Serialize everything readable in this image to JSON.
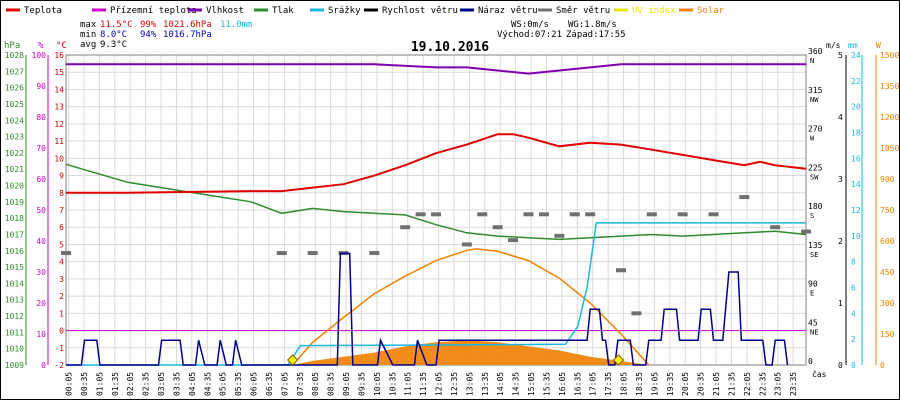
{
  "chart_data": {
    "type": "line",
    "title": "19.10.2016",
    "legend": [
      {
        "label": "Teplota",
        "color": "#e00000"
      },
      {
        "label": "Přízemní teplota",
        "color": "#cc00cc"
      },
      {
        "label": "Vlhkost",
        "color": "#8000b0"
      },
      {
        "label": "Tlak",
        "color": "#2e8b2e"
      },
      {
        "label": "Srážky",
        "color": "#18b8e0"
      },
      {
        "label": "Rychlost větru",
        "color": "#000000"
      },
      {
        "label": "Náraz větru",
        "color": "#000088"
      },
      {
        "label": "Směr větru",
        "color": "#707070"
      },
      {
        "label": "UV index",
        "color": "#e8e800"
      },
      {
        "label": "Solar",
        "color": "#f08000"
      }
    ],
    "stats": {
      "max_label": "max",
      "max_temp": "11.5°C",
      "max_hum": "99%",
      "max_press": "1021.6hPa",
      "max_rain": "11.0mm",
      "min_label": "min",
      "min_temp": "8.0°C",
      "min_hum": "94%",
      "min_press": "1016.7hPa",
      "avg_label": "avg",
      "avg_temp": "9.3°C",
      "ws": "WS:0m/s",
      "wg": "WG:1.8m/s",
      "sunrise": "Východ:07:21",
      "sunset": "Západ:17:55"
    },
    "axes": {
      "hpa": {
        "unit": "hPa",
        "color": "#2e8b2e",
        "range": [
          1009,
          1028
        ],
        "ticks": [
          1009,
          1010,
          1011,
          1012,
          1013,
          1014,
          1015,
          1016,
          1017,
          1018,
          1019,
          1020,
          1021,
          1022,
          1023,
          1024,
          1025,
          1026,
          1027,
          1028
        ]
      },
      "pct": {
        "unit": "%",
        "color": "#cc00cc",
        "range": [
          0,
          100
        ],
        "ticks": [
          0,
          10,
          20,
          30,
          40,
          50,
          60,
          70,
          80,
          90,
          100
        ]
      },
      "celsius": {
        "unit": "°C",
        "color": "#cc0000",
        "range": [
          -2,
          16
        ],
        "ticks": [
          -2,
          -1,
          0,
          1,
          2,
          3,
          4,
          5,
          6,
          7,
          8,
          9,
          10,
          11,
          12,
          13,
          14,
          15,
          16
        ]
      },
      "dir": {
        "range": [
          0,
          360
        ],
        "ticks": [
          "0",
          "45",
          "90",
          "135",
          "180",
          "225",
          "270",
          "315",
          "360"
        ],
        "names": [
          "",
          "NE",
          "E",
          "SE",
          "S",
          "SW",
          "W",
          "NW",
          "N"
        ]
      },
      "ms": {
        "unit": "m/s",
        "color": "#000000",
        "range": [
          0,
          5
        ],
        "ticks": [
          0,
          1,
          2,
          3,
          4,
          5
        ]
      },
      "mm": {
        "unit": "mm",
        "color": "#18b8e0",
        "range": [
          0,
          24
        ],
        "ticks": [
          0,
          2,
          4,
          6,
          8,
          10,
          12,
          14,
          16,
          18,
          20,
          22,
          24
        ]
      },
      "w": {
        "unit": "W",
        "color": "#f08000",
        "range": [
          0,
          1500
        ],
        "ticks": [
          0,
          150,
          300,
          450,
          600,
          750,
          900,
          1050,
          1200,
          1350,
          1500
        ]
      }
    },
    "x_ticks": [
      "00:05",
      "00:35",
      "01:05",
      "01:35",
      "02:05",
      "02:35",
      "03:05",
      "03:35",
      "04:05",
      "04:35",
      "05:05",
      "05:35",
      "06:05",
      "06:35",
      "07:05",
      "07:35",
      "08:05",
      "08:35",
      "09:05",
      "09:35",
      "10:05",
      "10:35",
      "11:05",
      "11:35",
      "12:05",
      "12:35",
      "13:05",
      "13:35",
      "14:05",
      "14:35",
      "15:05",
      "15:35",
      "16:05",
      "16:35",
      "17:05",
      "17:35",
      "18:05",
      "18:35",
      "19:05",
      "19:35",
      "20:05",
      "20:35",
      "21:05",
      "21:35",
      "22:05",
      "22:35",
      "23:05",
      "23:35"
    ],
    "x_label": "čas",
    "series": {
      "temperature_c": [
        [
          0,
          8.0
        ],
        [
          2,
          8.0
        ],
        [
          6,
          8.1
        ],
        [
          7,
          8.1
        ],
        [
          8,
          8.3
        ],
        [
          9,
          8.5
        ],
        [
          10,
          9.0
        ],
        [
          11,
          9.6
        ],
        [
          12,
          10.3
        ],
        [
          13,
          10.8
        ],
        [
          14,
          11.4
        ],
        [
          14.5,
          11.4
        ],
        [
          15,
          11.2
        ],
        [
          16,
          10.7
        ],
        [
          17,
          10.9
        ],
        [
          18,
          10.8
        ],
        [
          19,
          10.5
        ],
        [
          20,
          10.2
        ],
        [
          21,
          9.9
        ],
        [
          22,
          9.6
        ],
        [
          22.5,
          9.8
        ],
        [
          23,
          9.6
        ],
        [
          24,
          9.4
        ]
      ],
      "pressure_hpa": [
        [
          0,
          1021.3
        ],
        [
          2,
          1020.2
        ],
        [
          4,
          1019.6
        ],
        [
          6,
          1019.0
        ],
        [
          7,
          1018.3
        ],
        [
          8,
          1018.6
        ],
        [
          9,
          1018.4
        ],
        [
          10,
          1018.3
        ],
        [
          11,
          1018.2
        ],
        [
          12,
          1017.6
        ],
        [
          13,
          1017.1
        ],
        [
          14,
          1016.9
        ],
        [
          15,
          1016.8
        ],
        [
          16,
          1016.7
        ],
        [
          17,
          1016.8
        ],
        [
          18,
          1016.9
        ],
        [
          19,
          1017.0
        ],
        [
          20,
          1016.9
        ],
        [
          21,
          1017.0
        ],
        [
          22,
          1017.1
        ],
        [
          23,
          1017.2
        ],
        [
          24,
          1017.0
        ]
      ],
      "humidity_pct": [
        [
          0,
          97
        ],
        [
          6,
          97
        ],
        [
          8,
          97
        ],
        [
          10,
          97
        ],
        [
          12,
          96
        ],
        [
          13,
          96
        ],
        [
          14,
          95
        ],
        [
          15,
          94
        ],
        [
          16,
          95
        ],
        [
          17,
          96
        ],
        [
          18,
          97
        ],
        [
          20,
          97
        ],
        [
          22,
          97
        ],
        [
          24,
          97
        ]
      ],
      "ground_temp_c": [
        [
          0,
          0
        ],
        [
          24,
          0
        ]
      ],
      "rain_mm": [
        [
          0,
          0
        ],
        [
          7.2,
          0
        ],
        [
          7.6,
          1.5
        ],
        [
          16.2,
          1.6
        ],
        [
          16.6,
          3.0
        ],
        [
          16.9,
          6.0
        ],
        [
          17.2,
          11.0
        ],
        [
          24,
          11.0
        ]
      ],
      "gust_ms": [
        [
          0,
          0
        ],
        [
          0.5,
          0
        ],
        [
          0.6,
          0.4
        ],
        [
          1.0,
          0.4
        ],
        [
          1.1,
          0
        ],
        [
          3.0,
          0
        ],
        [
          3.1,
          0.4
        ],
        [
          3.7,
          0.4
        ],
        [
          3.8,
          0
        ],
        [
          4.2,
          0
        ],
        [
          4.3,
          0.4
        ],
        [
          4.5,
          0
        ],
        [
          4.9,
          0
        ],
        [
          5.0,
          0.4
        ],
        [
          5.2,
          0
        ],
        [
          5.4,
          0
        ],
        [
          5.5,
          0.4
        ],
        [
          5.7,
          0
        ],
        [
          8.8,
          0
        ],
        [
          8.9,
          1.8
        ],
        [
          9.2,
          1.8
        ],
        [
          9.3,
          0
        ],
        [
          10.1,
          0
        ],
        [
          10.2,
          0.4
        ],
        [
          10.6,
          0
        ],
        [
          11.3,
          0
        ],
        [
          11.4,
          0.4
        ],
        [
          11.7,
          0
        ],
        [
          12.0,
          0
        ],
        [
          12.1,
          0.4
        ],
        [
          16.9,
          0.4
        ],
        [
          17.0,
          0.9
        ],
        [
          17.3,
          0.9
        ],
        [
          17.4,
          0.4
        ],
        [
          17.5,
          0.4
        ],
        [
          17.6,
          0
        ],
        [
          17.8,
          0
        ],
        [
          17.9,
          0.4
        ],
        [
          18.3,
          0.4
        ],
        [
          18.4,
          0
        ],
        [
          18.8,
          0
        ],
        [
          18.9,
          0.4
        ],
        [
          19.3,
          0.4
        ],
        [
          19.4,
          0.9
        ],
        [
          19.8,
          0.9
        ],
        [
          19.9,
          0.4
        ],
        [
          20.5,
          0.4
        ],
        [
          20.6,
          0.9
        ],
        [
          20.9,
          0.9
        ],
        [
          21.0,
          0.4
        ],
        [
          21.3,
          0.4
        ],
        [
          21.5,
          1.5
        ],
        [
          21.8,
          1.5
        ],
        [
          21.9,
          0.4
        ],
        [
          22.6,
          0.4
        ],
        [
          22.7,
          0
        ],
        [
          22.9,
          0
        ],
        [
          23.0,
          0.4
        ],
        [
          23.3,
          0.4
        ],
        [
          23.4,
          0
        ]
      ],
      "solar_w": [
        [
          7.35,
          0
        ],
        [
          8,
          110
        ],
        [
          9,
          230
        ],
        [
          10,
          345
        ],
        [
          11,
          430
        ],
        [
          12,
          505
        ],
        [
          13,
          555
        ],
        [
          13.3,
          562
        ],
        [
          14,
          550
        ],
        [
          15,
          505
        ],
        [
          16,
          420
        ],
        [
          17,
          300
        ],
        [
          18,
          150
        ],
        [
          18.9,
          0
        ]
      ],
      "solar_fill_w": [
        [
          7.35,
          0
        ],
        [
          8,
          20
        ],
        [
          9,
          40
        ],
        [
          10,
          60
        ],
        [
          11,
          90
        ],
        [
          12,
          110
        ],
        [
          13,
          120
        ],
        [
          14,
          110
        ],
        [
          15,
          90
        ],
        [
          16,
          70
        ],
        [
          17,
          40
        ],
        [
          18,
          20
        ],
        [
          18.9,
          0
        ]
      ],
      "wind_dir_deg": [
        [
          0,
          130
        ],
        [
          7,
          130
        ],
        [
          8,
          130
        ],
        [
          9,
          130
        ],
        [
          10,
          130
        ],
        [
          11,
          160
        ],
        [
          11.5,
          175
        ],
        [
          12,
          175
        ],
        [
          13,
          140
        ],
        [
          13.5,
          175
        ],
        [
          14,
          160
        ],
        [
          14.5,
          145
        ],
        [
          15,
          175
        ],
        [
          15.5,
          175
        ],
        [
          16,
          150
        ],
        [
          16.5,
          175
        ],
        [
          17,
          175
        ],
        [
          18,
          110
        ],
        [
          18.5,
          60
        ],
        [
          19,
          175
        ],
        [
          20,
          175
        ],
        [
          21,
          175
        ],
        [
          22,
          195
        ],
        [
          23,
          160
        ],
        [
          24,
          155
        ]
      ],
      "sun_markers_h": [
        7.35,
        17.92
      ]
    }
  }
}
